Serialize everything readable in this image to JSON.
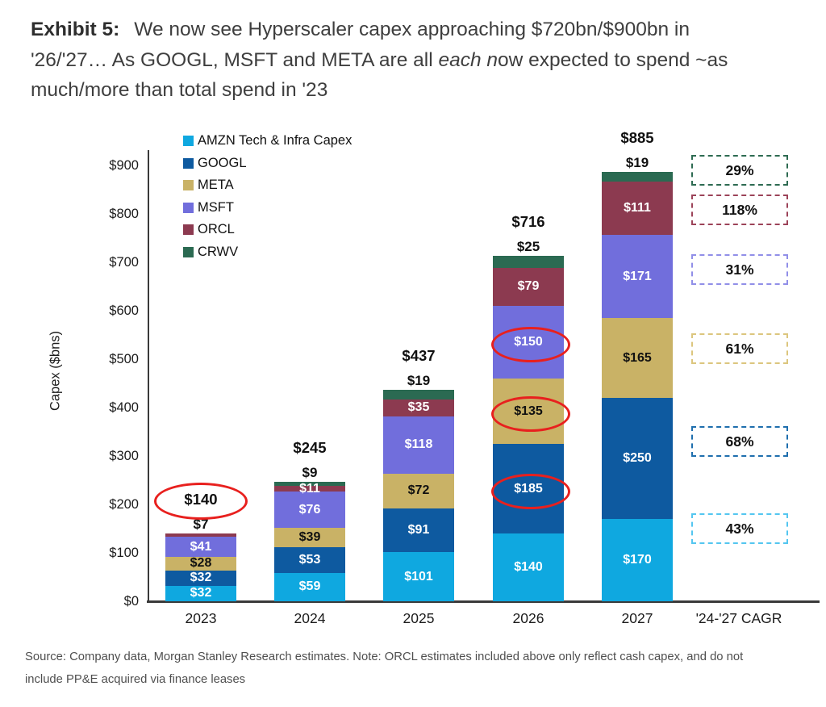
{
  "title": {
    "exhibit_label": "Exhibit 5:",
    "line1": "We now see Hyperscaler capex approaching $720bn/$900bn in",
    "line2_pre": "'26/'27… As GOOGL, MSFT and META are all ",
    "line2_italic": "each n",
    "line2_post": "ow expected to spend ~as",
    "line3": "much/more than total spend in '23"
  },
  "chart_data": {
    "type": "bar",
    "stacked": true,
    "ylabel": "Capex ($bns)",
    "xlabel": "",
    "ylim": [
      0,
      900
    ],
    "ytick_step": 100,
    "ytick_labels": [
      "$0",
      "$100",
      "$200",
      "$300",
      "$400",
      "$500",
      "$600",
      "$700",
      "$800",
      "$900"
    ],
    "grid": false,
    "legend_position": "top-left-inside",
    "categories": [
      "2023",
      "2024",
      "2025",
      "2026",
      "2027"
    ],
    "cagr_category_label": "'24-'27 CAGR",
    "legend": [
      {
        "series": "AMZN",
        "name": "AMZN Tech & Infra Capex",
        "color": "#0FA8E0"
      },
      {
        "series": "GOOGL",
        "name": "GOOGL",
        "color": "#0E5AA0"
      },
      {
        "series": "META",
        "name": "META",
        "color": "#C9B266"
      },
      {
        "series": "MSFT",
        "name": "MSFT",
        "color": "#716EDC"
      },
      {
        "series": "ORCL",
        "name": "ORCL",
        "color": "#8C3A50"
      },
      {
        "series": "CRWV",
        "name": "CRWV",
        "color": "#2B6A52"
      }
    ],
    "series": [
      {
        "name": "AMZN",
        "color": "#0FA8E0",
        "label_color": "#ffffff",
        "values": [
          32,
          59,
          101,
          140,
          170
        ],
        "labels": [
          "$32",
          "$59",
          "$101",
          "$140",
          "$170"
        ]
      },
      {
        "name": "GOOGL",
        "color": "#0E5AA0",
        "label_color": "#ffffff",
        "values": [
          32,
          53,
          91,
          185,
          250
        ],
        "labels": [
          "$32",
          "$53",
          "$91",
          "$185",
          "$250"
        ]
      },
      {
        "name": "META",
        "color": "#C9B266",
        "label_color": "#111111",
        "values": [
          28,
          39,
          72,
          135,
          165
        ],
        "labels": [
          "$28",
          "$39",
          "$72",
          "$135",
          "$165"
        ]
      },
      {
        "name": "MSFT",
        "color": "#716EDC",
        "label_color": "#ffffff",
        "values": [
          41,
          76,
          118,
          150,
          171
        ],
        "labels": [
          "$41",
          "$76",
          "$118",
          "$150",
          "$171"
        ]
      },
      {
        "name": "ORCL",
        "color": "#8C3A50",
        "label_color": "#ffffff",
        "values": [
          7,
          11,
          35,
          79,
          111
        ],
        "labels": [
          null,
          "$11",
          "$35",
          "$79",
          "$111"
        ]
      },
      {
        "name": "CRWV",
        "color": "#2B6A52",
        "label_color": "#ffffff",
        "values": [
          0,
          9,
          19,
          25,
          19
        ],
        "labels": [
          null,
          null,
          null,
          null,
          null
        ]
      }
    ],
    "totals": {
      "labels": [
        "$140",
        "$245",
        "$437",
        "$716",
        "$885"
      ],
      "circled": [
        true,
        false,
        false,
        false,
        false
      ]
    },
    "above_bar_labels": [
      "$7",
      "$9",
      "$19",
      "$25",
      "$19"
    ],
    "circled_segment_labels": [
      {
        "category": "2026",
        "series": "GOOGL"
      },
      {
        "category": "2026",
        "series": "META"
      },
      {
        "category": "2026",
        "series": "MSFT"
      }
    ],
    "annotation_color": "#E8201E",
    "cagr_boxes": [
      {
        "label": "29%",
        "series": "CRWV",
        "border_color": "#2E6B52"
      },
      {
        "label": "118%",
        "series": "ORCL",
        "border_color": "#9C4359"
      },
      {
        "label": "31%",
        "series": "MSFT",
        "border_color": "#918FE8"
      },
      {
        "label": "61%",
        "series": "META",
        "border_color": "#DCC67E"
      },
      {
        "label": "68%",
        "series": "GOOGL",
        "border_color": "#1F6FAE"
      },
      {
        "label": "43%",
        "series": "AMZN",
        "border_color": "#54C6F0"
      }
    ]
  },
  "source": {
    "line1": "Source: Company data, Morgan Stanley Research estimates. Note: ORCL estimates included above only reflect cash capex, and do not",
    "line2": "include PP&E acquired via finance leases"
  }
}
